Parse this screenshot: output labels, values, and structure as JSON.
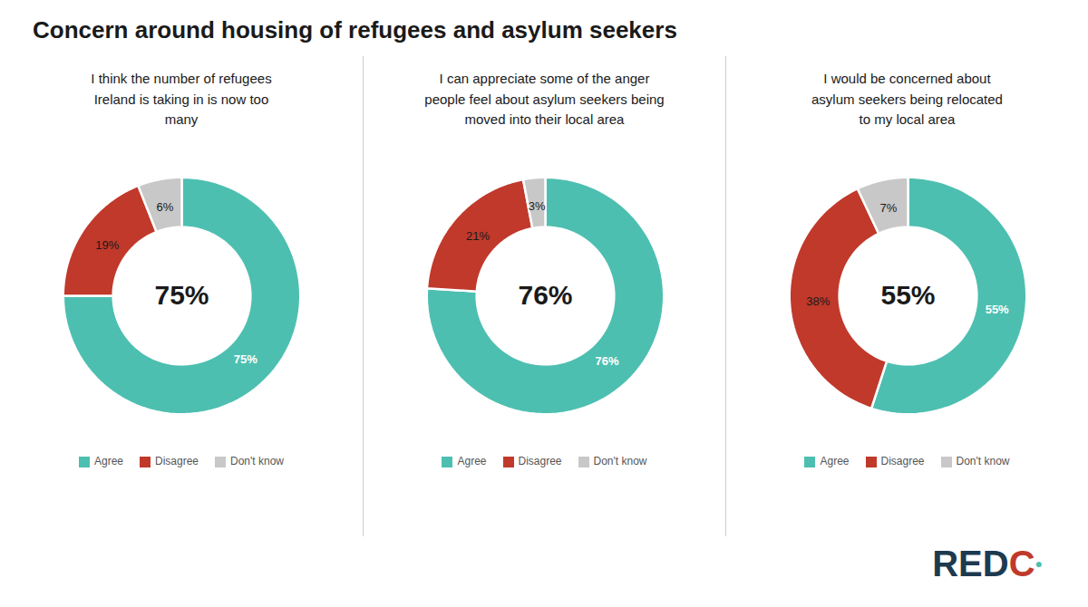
{
  "title": "Concern around housing of refugees and asylum seekers",
  "annotations": [
    {
      "text": "RED",
      "color": "#1e3a4f"
    },
    {
      "text": "C",
      "color": "#c0392b"
    },
    {
      "text": "●",
      "color": "#4dbfb0"
    }
  ],
  "chart_data": [
    {
      "type": "pie",
      "subtitle": "I think the number of refugees\nIreland is taking in is now too\nmany",
      "categories": [
        "Agree",
        "Disagree",
        "Don't know"
      ],
      "values": [
        75,
        19,
        6
      ],
      "value_labels": [
        "75%",
        "19%",
        "6%"
      ],
      "colors": [
        "#4dbfb0",
        "#c0392b",
        "#c8c8c8"
      ],
      "annotations": [
        "75%"
      ],
      "data_labels": true,
      "legend": "bottom"
    },
    {
      "type": "pie",
      "subtitle": "I can appreciate some of the anger\npeople feel about asylum seekers being\nmoved into their local area",
      "categories": [
        "Agree",
        "Disagree",
        "Don't know"
      ],
      "values": [
        76,
        21,
        3
      ],
      "value_labels": [
        "76%",
        "21%",
        "3%"
      ],
      "colors": [
        "#4dbfb0",
        "#c0392b",
        "#c8c8c8"
      ],
      "annotations": [
        "76%"
      ],
      "data_labels": true,
      "legend": "bottom"
    },
    {
      "type": "pie",
      "subtitle": "I would be concerned about\nasylum seekers being relocated\nto my local area",
      "categories": [
        "Agree",
        "Disagree",
        "Don't know"
      ],
      "values": [
        55,
        38,
        7
      ],
      "value_labels": [
        "55%",
        "38%",
        "7%"
      ],
      "colors": [
        "#4dbfb0",
        "#c0392b",
        "#c8c8c8"
      ],
      "annotations": [
        "55%"
      ],
      "data_labels": true,
      "legend": "bottom"
    }
  ]
}
